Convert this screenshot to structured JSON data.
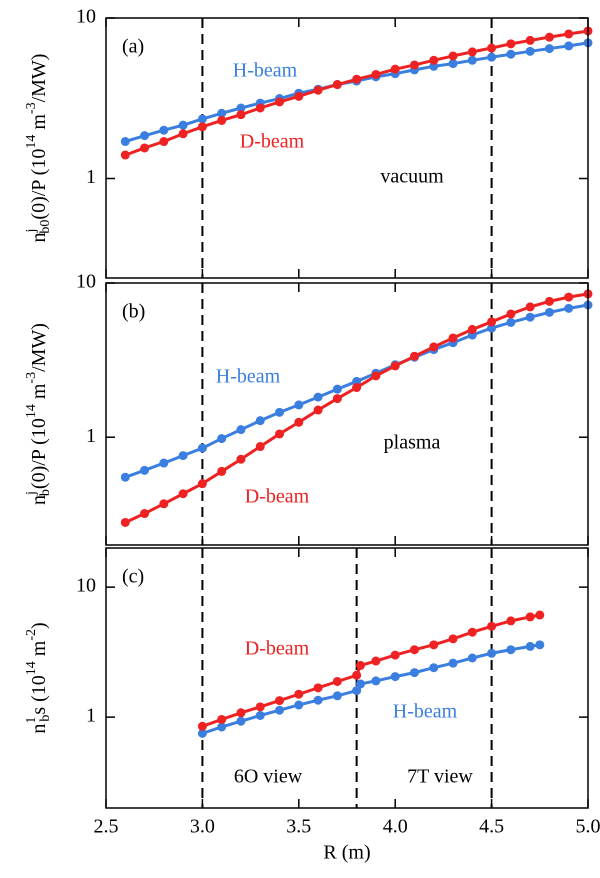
{
  "chart_data": [
    {
      "type": "scatter",
      "panel_label": "(a)",
      "y_label": [
        "n",
        "j",
        "b0",
        "(0)/P (10",
        "14",
        " m",
        "-3",
        "/MW)"
      ],
      "x": [
        2.6,
        2.7,
        2.8,
        2.9,
        3.0,
        3.1,
        3.2,
        3.3,
        3.4,
        3.5,
        3.6,
        3.7,
        3.8,
        3.9,
        4.0,
        4.1,
        4.2,
        4.3,
        4.4,
        4.5,
        4.6,
        4.7,
        4.8,
        4.9,
        5.0
      ],
      "series": [
        {
          "name": "H-beam",
          "color": "#3a7fe0",
          "values": [
            1.7,
            1.85,
            2.0,
            2.15,
            2.35,
            2.55,
            2.75,
            2.95,
            3.15,
            3.4,
            3.6,
            3.85,
            4.05,
            4.3,
            4.5,
            4.75,
            5.0,
            5.2,
            5.45,
            5.7,
            5.95,
            6.2,
            6.45,
            6.7,
            7.0
          ]
        },
        {
          "name": "D-beam",
          "color": "#ee2222",
          "values": [
            1.4,
            1.55,
            1.7,
            1.9,
            2.1,
            2.3,
            2.5,
            2.75,
            3.0,
            3.25,
            3.55,
            3.85,
            4.15,
            4.45,
            4.8,
            5.1,
            5.45,
            5.8,
            6.15,
            6.5,
            6.9,
            7.25,
            7.6,
            7.95,
            8.3
          ]
        }
      ],
      "annotations": [
        {
          "text": "H-beam",
          "color": "#3a7fe0"
        },
        {
          "text": "D-beam",
          "color": "#ee2222"
        },
        {
          "text": "vacuum",
          "color": "#000000"
        }
      ],
      "vlines": [
        3.0,
        4.5
      ],
      "xlim": [
        2.5,
        5.0
      ],
      "xticks": [
        2.5,
        3,
        3.5,
        4,
        4.5,
        5
      ],
      "ylim": [
        0.24,
        10
      ],
      "yticks": [
        1,
        10
      ],
      "log_y": true
    },
    {
      "type": "scatter",
      "panel_label": "(b)",
      "y_label": [
        "n",
        "j",
        "b",
        "(0)/P (10",
        "14",
        " m",
        "-3",
        "/MW)"
      ],
      "x": [
        2.6,
        2.7,
        2.8,
        2.9,
        3.0,
        3.1,
        3.2,
        3.3,
        3.4,
        3.5,
        3.6,
        3.7,
        3.8,
        3.9,
        4.0,
        4.1,
        4.2,
        4.3,
        4.4,
        4.5,
        4.6,
        4.7,
        4.8,
        4.9,
        5.0
      ],
      "series": [
        {
          "name": "H-beam",
          "color": "#3a7fe0",
          "values": [
            0.55,
            0.61,
            0.68,
            0.76,
            0.85,
            0.98,
            1.12,
            1.28,
            1.45,
            1.62,
            1.82,
            2.05,
            2.3,
            2.6,
            2.95,
            3.3,
            3.7,
            4.1,
            4.6,
            5.1,
            5.55,
            6.0,
            6.45,
            6.85,
            7.2
          ]
        },
        {
          "name": "D-beam",
          "color": "#ee2222",
          "values": [
            0.28,
            0.32,
            0.37,
            0.43,
            0.5,
            0.6,
            0.72,
            0.87,
            1.05,
            1.25,
            1.5,
            1.78,
            2.1,
            2.5,
            2.9,
            3.35,
            3.85,
            4.4,
            5.0,
            5.6,
            6.3,
            7.0,
            7.6,
            8.1,
            8.5
          ]
        }
      ],
      "annotations": [
        {
          "text": "H-beam",
          "color": "#3a7fe0"
        },
        {
          "text": "D-beam",
          "color": "#ee2222"
        },
        {
          "text": "plasma",
          "color": "#000000"
        }
      ],
      "vlines": [
        3.0,
        4.5
      ],
      "xlim": [
        2.5,
        5.0
      ],
      "xticks": [
        2.5,
        3,
        3.5,
        4,
        4.5,
        5
      ],
      "ylim": [
        0.2,
        10
      ],
      "yticks": [
        1,
        10
      ],
      "log_y": true
    },
    {
      "type": "scatter",
      "panel_label": "(c)",
      "y_label": [
        "n",
        "1",
        "b",
        "s (10",
        "14",
        " m",
        "-2",
        ")"
      ],
      "x_label": "R (m)",
      "x": [
        3.0,
        3.1,
        3.2,
        3.3,
        3.4,
        3.5,
        3.6,
        3.7,
        3.8,
        3.82,
        3.9,
        4.0,
        4.1,
        4.2,
        4.3,
        4.4,
        4.5,
        4.6,
        4.7,
        4.75
      ],
      "series": [
        {
          "name": "H-beam",
          "color": "#3a7fe0",
          "values": [
            0.75,
            0.84,
            0.93,
            1.03,
            1.13,
            1.24,
            1.35,
            1.46,
            1.6,
            1.8,
            1.9,
            2.05,
            2.2,
            2.4,
            2.6,
            2.85,
            3.1,
            3.3,
            3.5,
            3.6
          ]
        },
        {
          "name": "D-beam",
          "color": "#ee2222",
          "values": [
            0.85,
            0.96,
            1.08,
            1.2,
            1.34,
            1.5,
            1.68,
            1.88,
            2.1,
            2.5,
            2.7,
            3.0,
            3.3,
            3.6,
            4.0,
            4.5,
            5.0,
            5.5,
            5.9,
            6.1
          ]
        }
      ],
      "annotations": [
        {
          "text": "D-beam",
          "color": "#ee2222"
        },
        {
          "text": "H-beam",
          "color": "#3a7fe0"
        },
        {
          "text": "6O view",
          "color": "#000000"
        },
        {
          "text": "7T view",
          "color": "#000000"
        }
      ],
      "vlines": [
        3.0,
        3.8,
        4.5
      ],
      "xlim": [
        2.5,
        5.0
      ],
      "xticks": [
        2.5,
        {
          "value": 3,
          "label": "3.0"
        },
        3.5,
        {
          "value": 4,
          "label": "4.0"
        },
        4.5,
        {
          "value": 5,
          "label": "5.0"
        }
      ],
      "ylim": [
        0.2,
        20
      ],
      "yticks": [
        1,
        10
      ],
      "log_y": true
    }
  ]
}
